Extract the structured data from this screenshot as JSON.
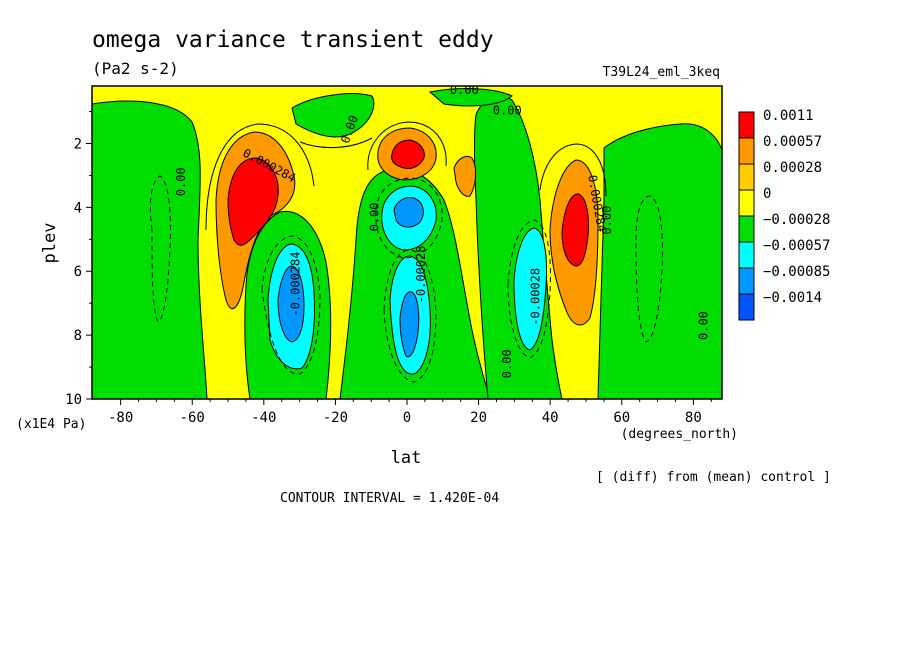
{
  "chart_data": {
    "type": "contour",
    "title": "omega variance transient eddy",
    "units": "(Pa2 s-2)",
    "dataset": "T39L24_eml_3keq",
    "xlabel": "lat",
    "x_units": "(degrees_north)",
    "ylabel": "plev",
    "y_units": "(x1E4 Pa)",
    "x_ticks": [
      -80,
      -60,
      -40,
      -20,
      0,
      20,
      40,
      60,
      80
    ],
    "x_tick_labels": [
      "-80",
      "-60",
      "-40",
      "-20",
      "0",
      "20",
      "40",
      "60",
      "80"
    ],
    "xlim": [
      -88,
      88
    ],
    "y_ticks": [
      2,
      4,
      6,
      8,
      10
    ],
    "y_tick_labels": [
      "2",
      "4",
      "6",
      "8",
      "10"
    ],
    "ylim": [
      10,
      0.2
    ],
    "note": "[ (diff) from (mean) control ]",
    "contour_interval": "CONTOUR INTERVAL = 1.420E-04",
    "colorbar": [
      {
        "label": "0.0011",
        "color": "#ff0000"
      },
      {
        "label": "0.00057",
        "color": "#ff9900"
      },
      {
        "label": "0.00028",
        "color": "#ffcc00"
      },
      {
        "label": "0",
        "color": "#ffff00"
      },
      {
        "label": "−0.00028",
        "color": "#00dd00"
      },
      {
        "label": "−0.00057",
        "color": "#00ffff"
      },
      {
        "label": "−0.00085",
        "color": "#0099ff"
      },
      {
        "label": "−0.0014",
        "color": "#0055ff"
      }
    ],
    "features": [
      {
        "lat": -40,
        "plev": 3.6,
        "sign": "positive",
        "peak": 0.0011
      },
      {
        "lat": -35,
        "plev": 6.8,
        "sign": "negative",
        "peak": -0.00085
      },
      {
        "lat": 0,
        "plev": 2.4,
        "sign": "positive",
        "peak": 0.0011
      },
      {
        "lat": 0,
        "plev": 4.2,
        "sign": "negative",
        "peak": -0.00085
      },
      {
        "lat": 1,
        "plev": 7.3,
        "sign": "negative",
        "peak": -0.00085
      },
      {
        "lat": 36,
        "plev": 6.5,
        "sign": "negative",
        "peak": -0.00057
      },
      {
        "lat": 47,
        "plev": 4.5,
        "sign": "positive",
        "peak": 0.0011
      }
    ],
    "contour_labels": [
      {
        "text": "0.00",
        "lat": -62,
        "plev": 3.2,
        "rotate": -90
      },
      {
        "text": "0.000284",
        "lat": -39,
        "plev": 2.8,
        "rotate": 28
      },
      {
        "text": "0.00",
        "lat": -15,
        "plev": 1.6,
        "rotate": -70
      },
      {
        "text": "0.00",
        "lat": 16,
        "plev": 0.45,
        "rotate": 0
      },
      {
        "text": "0.00",
        "lat": 28,
        "plev": 1.1,
        "rotate": 0
      },
      {
        "text": "0.00",
        "lat": -8,
        "plev": 4.3,
        "rotate": -90
      },
      {
        "text": "-0.000284",
        "lat": -30,
        "plev": 6.4,
        "rotate": -90
      },
      {
        "text": "-0.00028",
        "lat": 5,
        "plev": 6.1,
        "rotate": -90
      },
      {
        "text": "0.00",
        "lat": 29,
        "plev": 8.9,
        "rotate": -90
      },
      {
        "text": "-0.00028",
        "lat": 37,
        "plev": 6.8,
        "rotate": -90
      },
      {
        "text": "0.000284",
        "lat": 52,
        "plev": 3.9,
        "rotate": 80
      },
      {
        "text": "0.00",
        "lat": 57,
        "plev": 4.4,
        "rotate": -90
      },
      {
        "text": "0.00",
        "lat": 84,
        "plev": 7.7,
        "rotate": -90
      }
    ]
  }
}
